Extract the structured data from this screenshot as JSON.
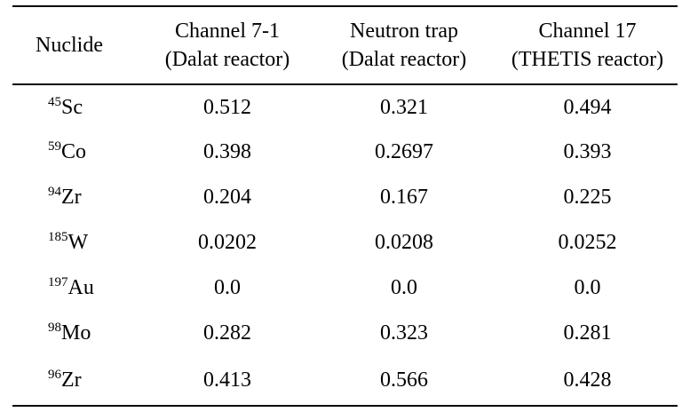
{
  "headers": {
    "nuclide": "Nuclide",
    "col1_line1": "Channel 7-1",
    "col1_line2": "(Dalat reactor)",
    "col2_line1": "Neutron trap",
    "col2_line2": "(Dalat reactor)",
    "col3_line1": "Channel 17",
    "col3_line2": "(THETIS reactor)"
  },
  "rows": [
    {
      "mass": "45",
      "symbol": "Sc",
      "v1": "0.512",
      "v2": "0.321",
      "v3": "0.494"
    },
    {
      "mass": "59",
      "symbol": "Co",
      "v1": "0.398",
      "v2": "0.2697",
      "v3": "0.393"
    },
    {
      "mass": "94",
      "symbol": "Zr",
      "v1": "0.204",
      "v2": "0.167",
      "v3": "0.225"
    },
    {
      "mass": "185",
      "symbol": "W",
      "v1": "0.0202",
      "v2": "0.0208",
      "v3": "0.0252"
    },
    {
      "mass": "197",
      "symbol": "Au",
      "v1": "0.0",
      "v2": "0.0",
      "v3": "0.0"
    },
    {
      "mass": "98",
      "symbol": "Mo",
      "v1": "0.282",
      "v2": "0.323",
      "v3": "0.281"
    },
    {
      "mass": "96",
      "symbol": "Zr",
      "v1": "0.413",
      "v2": "0.566",
      "v3": "0.428"
    }
  ]
}
